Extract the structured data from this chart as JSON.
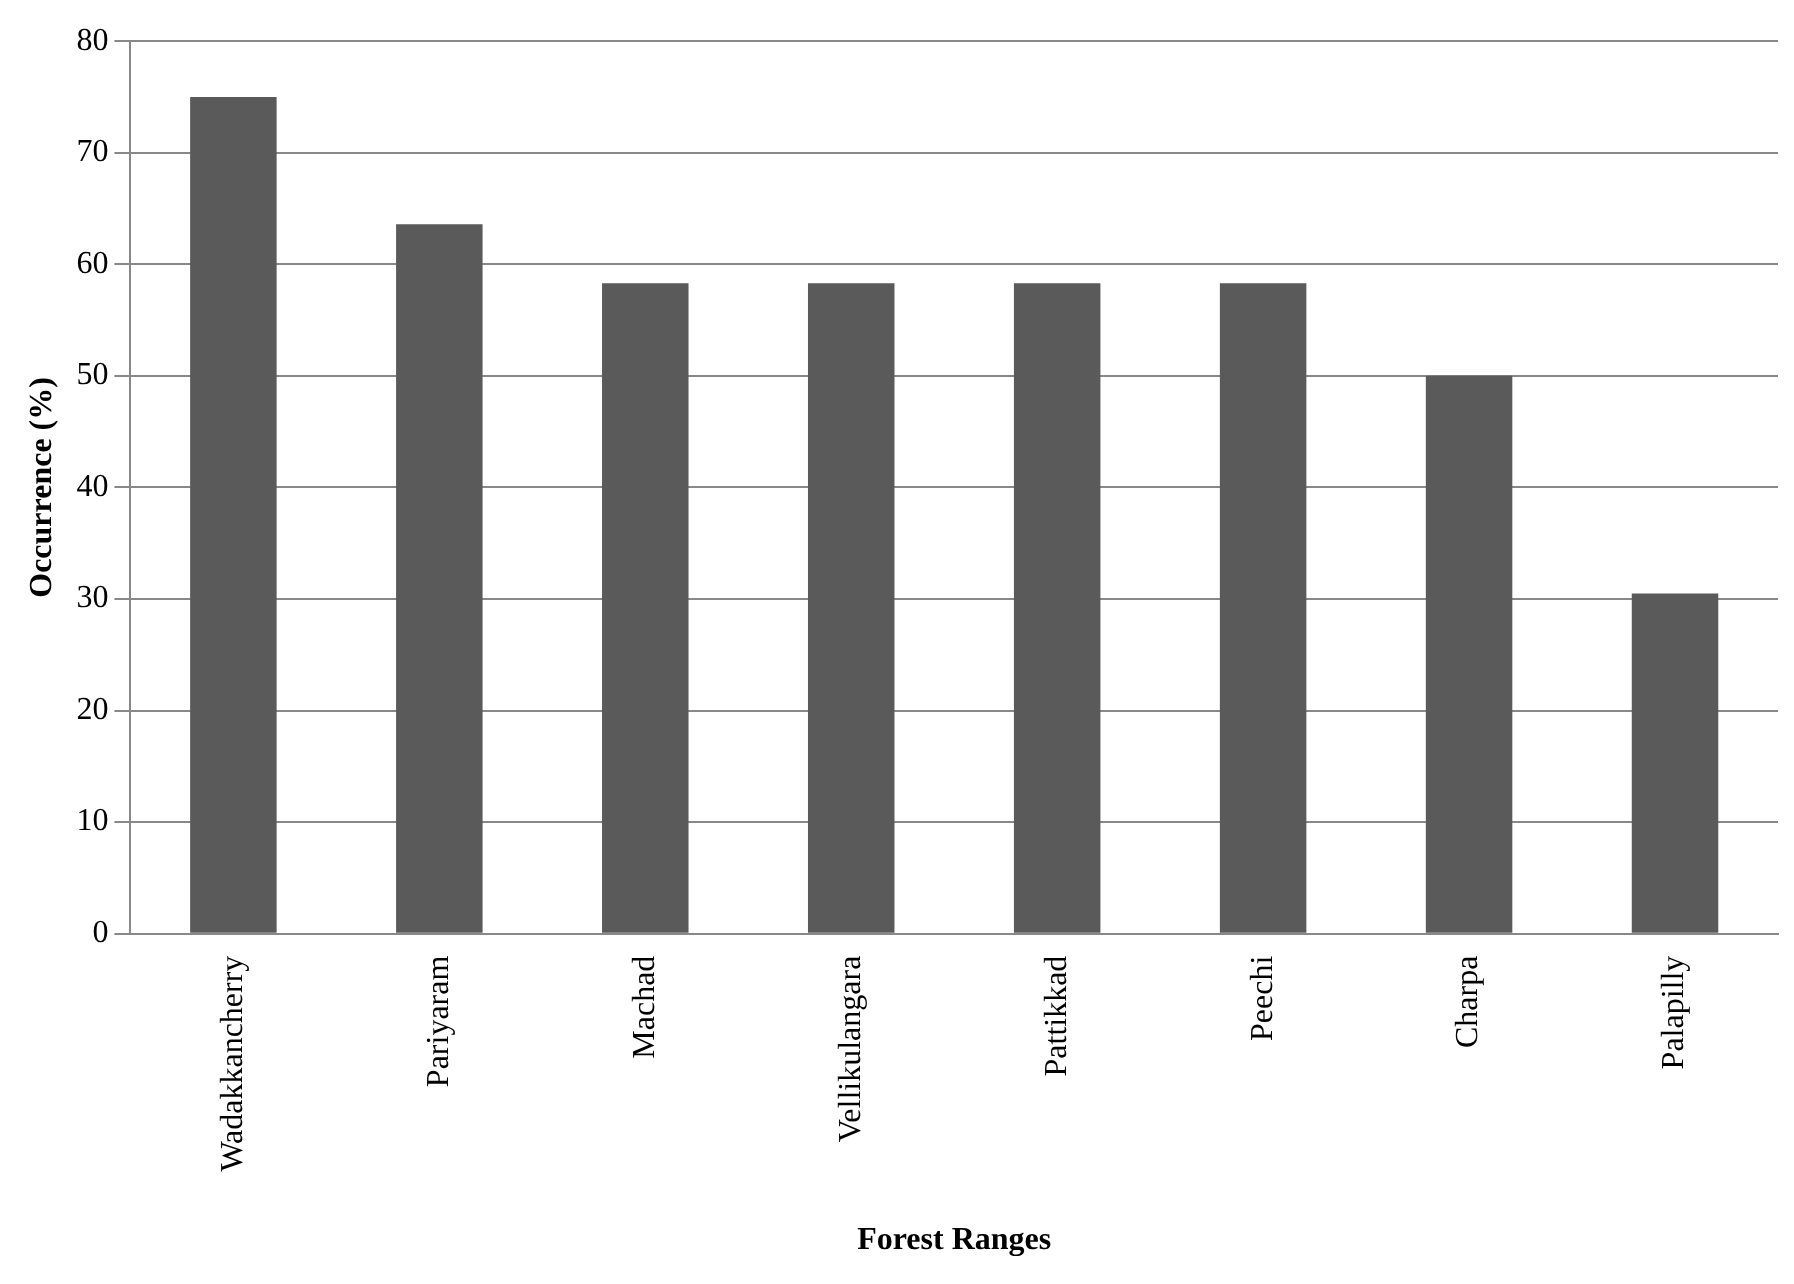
{
  "chart_data": {
    "type": "bar",
    "xlabel": "Forest Ranges",
    "ylabel": "Occurrence (%)",
    "categories": [
      "Wadakkancherry",
      "Pariyaram",
      "Machad",
      "Vellikulangara",
      "Pattikkad",
      "Peechi",
      "Charpa",
      "Palapilly"
    ],
    "values": [
      75,
      63.6,
      58.3,
      58.3,
      58.3,
      58.3,
      50,
      30.5
    ],
    "color": "#5a5a5a",
    "ylim": [
      0,
      80
    ],
    "yticks": [
      0,
      10,
      20,
      30,
      40,
      50,
      60,
      70,
      80
    ],
    "grid": "y",
    "legend": false
  }
}
